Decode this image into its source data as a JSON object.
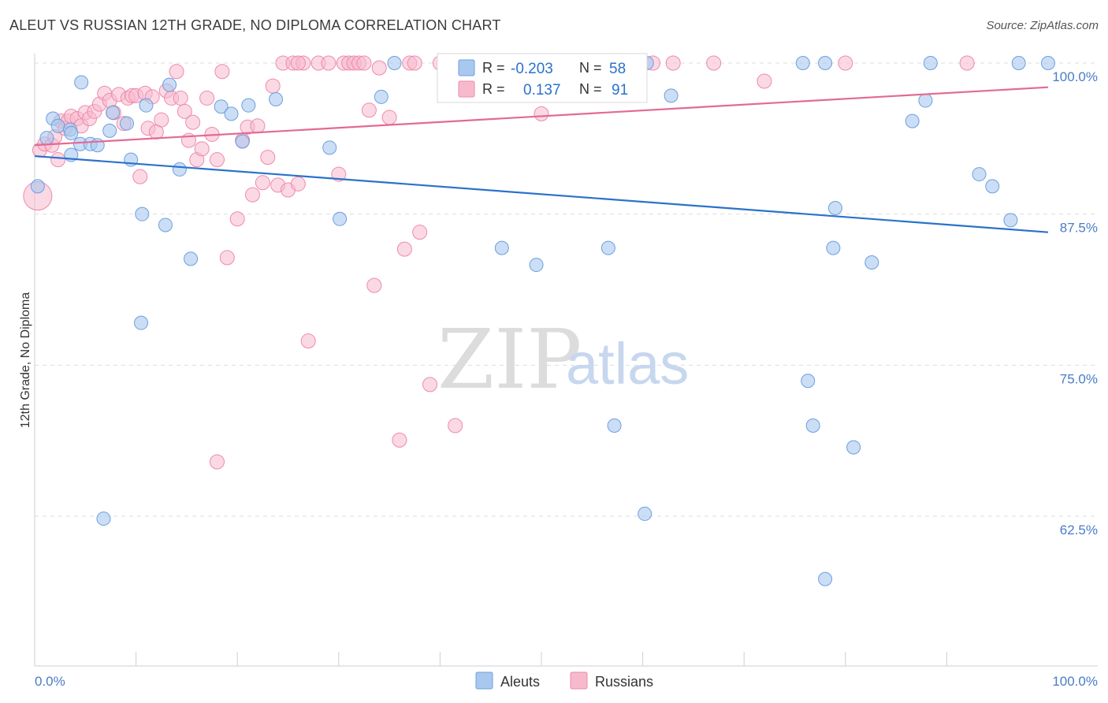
{
  "title": "ALEUT VS RUSSIAN 12TH GRADE, NO DIPLOMA CORRELATION CHART",
  "source": "Source: ZipAtlas.com",
  "watermark": {
    "zip": "ZIP",
    "atlas": "atlas"
  },
  "colors": {
    "aleuts_fill": "#a9c8ef",
    "aleuts_stroke": "#6d9fe0",
    "aleuts_line": "#2a72cc",
    "russians_fill": "#f7bacd",
    "russians_stroke": "#ee8aa9",
    "russians_line": "#e36a93",
    "tick_text": "#4a7cc7",
    "grid": "#dddddd"
  },
  "legend_top": {
    "r_label": "R =",
    "n_label": "N =",
    "aleuts": {
      "r": "-0.203",
      "n": "58"
    },
    "russians": {
      "r": "0.137",
      "n": "91"
    }
  },
  "chart_data": {
    "type": "scatter",
    "title": "ALEUT VS RUSSIAN 12TH GRADE, NO DIPLOMA CORRELATION CHART",
    "xlabel": "",
    "ylabel": "12th Grade, No Diploma",
    "xlim": [
      0,
      100
    ],
    "ylim": [
      52,
      100
    ],
    "x_tick_labels": [
      "0.0%",
      "100.0%"
    ],
    "y_ticks": [
      62.5,
      75.0,
      87.5,
      100.0
    ],
    "y_tick_labels": [
      "62.5%",
      "75.0%",
      "87.5%",
      "100.0%"
    ],
    "grid": "horizontal dashed",
    "legend_position": "bottom-center",
    "series": [
      {
        "name": "Aleuts",
        "r": -0.203,
        "n": 58,
        "trend": {
          "x": [
            0,
            100
          ],
          "y": [
            92.3,
            86.0
          ]
        },
        "points": [
          [
            0.3,
            89.8
          ],
          [
            1.2,
            93.8
          ],
          [
            1.8,
            95.4
          ],
          [
            2.3,
            94.8
          ],
          [
            3.5,
            94.5
          ],
          [
            4.5,
            93.3
          ],
          [
            5.5,
            93.3
          ],
          [
            3.6,
            92.4
          ],
          [
            3.6,
            94.2
          ],
          [
            6.2,
            93.2
          ],
          [
            4.6,
            98.4
          ],
          [
            7.4,
            94.4
          ],
          [
            7.7,
            95.9
          ],
          [
            9.1,
            95.0
          ],
          [
            9.5,
            92.0
          ],
          [
            10.6,
            87.5
          ],
          [
            11.0,
            96.5
          ],
          [
            12.9,
            86.6
          ],
          [
            13.3,
            98.2
          ],
          [
            14.3,
            91.2
          ],
          [
            15.4,
            83.8
          ],
          [
            18.4,
            96.4
          ],
          [
            19.4,
            95.8
          ],
          [
            20.5,
            93.5
          ],
          [
            21.1,
            96.5
          ],
          [
            23.8,
            97.0
          ],
          [
            29.1,
            93.0
          ],
          [
            30.1,
            87.1
          ],
          [
            34.2,
            97.2
          ],
          [
            35.5,
            100.0
          ],
          [
            46.1,
            84.7
          ],
          [
            51.6,
            100.0
          ],
          [
            55.0,
            100.0
          ],
          [
            49.5,
            83.3
          ],
          [
            56.6,
            84.7
          ],
          [
            60.4,
            100.0
          ],
          [
            75.8,
            100.0
          ],
          [
            78.8,
            84.7
          ],
          [
            62.8,
            97.3
          ],
          [
            78.0,
            100.0
          ],
          [
            82.6,
            83.5
          ],
          [
            86.6,
            95.2
          ],
          [
            87.9,
            96.9
          ],
          [
            88.4,
            100.0
          ],
          [
            93.2,
            90.8
          ],
          [
            94.5,
            89.8
          ],
          [
            96.3,
            87.0
          ],
          [
            100.0,
            100.0
          ],
          [
            97.1,
            100.0
          ],
          [
            10.5,
            78.5
          ],
          [
            6.8,
            62.3
          ],
          [
            76.3,
            73.7
          ],
          [
            57.2,
            70.0
          ],
          [
            76.8,
            70.0
          ],
          [
            80.8,
            68.2
          ],
          [
            60.2,
            62.7
          ],
          [
            78.0,
            57.3
          ],
          [
            79.0,
            88.0
          ]
        ]
      },
      {
        "name": "Russians",
        "r": 0.137,
        "n": 91,
        "trend": {
          "x": [
            0,
            100
          ],
          "y": [
            93.2,
            98.0
          ]
        },
        "points": [
          [
            0.3,
            89.0
          ],
          [
            0.5,
            92.8
          ],
          [
            1.0,
            93.3
          ],
          [
            1.7,
            93.2
          ],
          [
            2.0,
            93.9
          ],
          [
            2.3,
            92.0
          ],
          [
            2.6,
            95.2
          ],
          [
            3.0,
            94.6
          ],
          [
            3.3,
            95.2
          ],
          [
            3.6,
            95.6
          ],
          [
            4.2,
            95.4
          ],
          [
            4.6,
            94.8
          ],
          [
            5.0,
            95.9
          ],
          [
            5.4,
            95.4
          ],
          [
            5.9,
            96.0
          ],
          [
            6.4,
            96.6
          ],
          [
            6.9,
            97.5
          ],
          [
            7.4,
            96.9
          ],
          [
            7.8,
            95.9
          ],
          [
            8.3,
            97.4
          ],
          [
            8.8,
            95.0
          ],
          [
            9.2,
            97.1
          ],
          [
            9.6,
            97.3
          ],
          [
            10.0,
            97.3
          ],
          [
            10.4,
            90.6
          ],
          [
            10.9,
            97.5
          ],
          [
            11.2,
            94.6
          ],
          [
            11.6,
            97.2
          ],
          [
            12.0,
            94.3
          ],
          [
            12.5,
            95.3
          ],
          [
            13.0,
            97.7
          ],
          [
            13.5,
            97.1
          ],
          [
            14.0,
            99.3
          ],
          [
            14.4,
            97.1
          ],
          [
            14.8,
            96.0
          ],
          [
            15.2,
            93.6
          ],
          [
            15.6,
            95.1
          ],
          [
            16.0,
            92.0
          ],
          [
            16.5,
            92.9
          ],
          [
            17.0,
            97.1
          ],
          [
            17.5,
            94.1
          ],
          [
            18.0,
            92.0
          ],
          [
            18.5,
            99.3
          ],
          [
            19.0,
            83.9
          ],
          [
            20.0,
            87.1
          ],
          [
            20.5,
            93.6
          ],
          [
            21.0,
            94.7
          ],
          [
            21.5,
            89.1
          ],
          [
            22.0,
            94.8
          ],
          [
            22.5,
            90.1
          ],
          [
            23.0,
            92.2
          ],
          [
            23.5,
            98.1
          ],
          [
            24.0,
            89.9
          ],
          [
            24.5,
            100.0
          ],
          [
            25.0,
            89.5
          ],
          [
            25.5,
            100.0
          ],
          [
            26.0,
            90.0
          ],
          [
            26.5,
            100.0
          ],
          [
            27.0,
            77.0
          ],
          [
            28.0,
            100.0
          ],
          [
            29.0,
            100.0
          ],
          [
            30.0,
            90.8
          ],
          [
            30.5,
            100.0
          ],
          [
            31.0,
            100.0
          ],
          [
            31.5,
            100.0
          ],
          [
            32.0,
            100.0
          ],
          [
            32.5,
            100.0
          ],
          [
            33.0,
            96.1
          ],
          [
            33.5,
            81.6
          ],
          [
            34.0,
            99.6
          ],
          [
            35.0,
            95.5
          ],
          [
            36.0,
            68.8
          ],
          [
            36.5,
            84.6
          ],
          [
            37.0,
            100.0
          ],
          [
            37.5,
            100.0
          ],
          [
            38.0,
            86.0
          ],
          [
            39.0,
            73.4
          ],
          [
            40.0,
            100.0
          ],
          [
            41.0,
            100.0
          ],
          [
            41.5,
            70.0
          ],
          [
            42.0,
            100.0
          ],
          [
            46.0,
            100.0
          ],
          [
            50.0,
            95.8
          ],
          [
            61.0,
            100.0
          ],
          [
            63.0,
            100.0
          ],
          [
            67.0,
            100.0
          ],
          [
            72.0,
            98.5
          ],
          [
            80.0,
            100.0
          ],
          [
            92.0,
            100.0
          ],
          [
            18.0,
            67.0
          ],
          [
            26.0,
            100.0
          ]
        ]
      }
    ]
  },
  "legend_bottom": [
    "Aleuts",
    "Russians"
  ]
}
